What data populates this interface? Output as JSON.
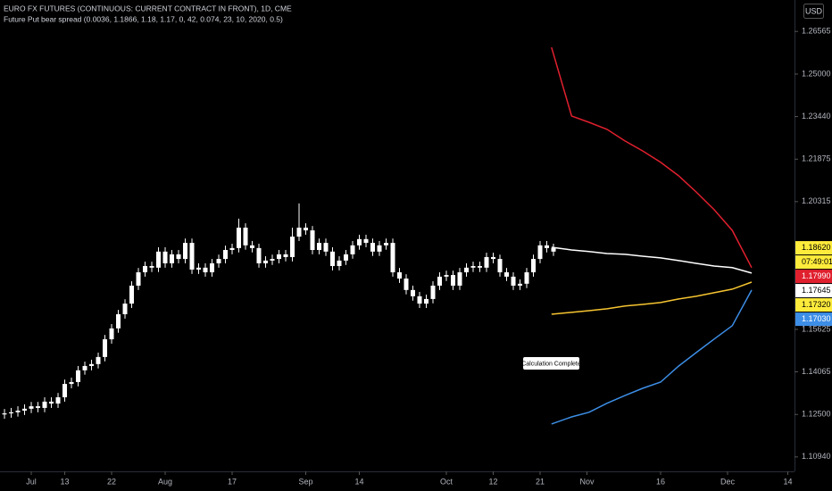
{
  "chart_data": {
    "type": "candlestick",
    "title": "EURO FX FUTURES (CONTINUOUS: CURRENT CONTRACT IN FRONT), 1D, CME",
    "subtitle": "Future Put bear spread (0.0036, 1.1866, 1.18, 1.17, 0, 42, 0.074, 23, 10, 2020, 0.5)",
    "currency": "USD",
    "annotation": "Calculation Complete",
    "color": "#ffffff",
    "x": [
      0,
      1,
      2,
      3,
      4,
      5,
      6,
      7,
      8,
      9,
      10,
      11,
      12,
      13,
      14,
      15,
      16,
      17,
      18,
      19,
      20,
      21,
      22,
      23,
      24,
      25,
      26,
      27,
      28,
      29,
      30,
      31,
      32,
      33,
      34,
      35,
      36,
      37,
      38,
      39,
      40,
      41,
      42,
      43,
      44,
      45,
      46,
      47,
      48,
      49,
      50,
      51,
      52,
      53,
      54,
      55,
      56,
      57,
      58,
      59,
      60,
      61,
      62,
      63,
      64,
      65,
      66,
      67,
      68,
      69,
      70,
      71,
      72,
      73,
      74,
      75,
      76,
      77,
      78,
      79,
      80,
      81,
      82
    ],
    "open": [
      1.125,
      1.1254,
      1.1258,
      1.1264,
      1.1271,
      1.128,
      1.1274,
      1.1297,
      1.129,
      1.1313,
      1.1362,
      1.1369,
      1.1412,
      1.1428,
      1.1435,
      1.1461,
      1.1526,
      1.1566,
      1.1618,
      1.1657,
      1.1723,
      1.1772,
      1.1795,
      1.1789,
      1.1848,
      1.1805,
      1.1838,
      1.1821,
      1.188,
      1.1782,
      1.1789,
      1.1772,
      1.1805,
      1.1821,
      1.1854,
      1.1861,
      1.1936,
      1.1871,
      1.1861,
      1.1805,
      1.1815,
      1.1821,
      1.1838,
      1.1828,
      1.1903,
      1.1936,
      1.1926,
      1.1854,
      1.188,
      1.1848,
      1.1795,
      1.1815,
      1.1838,
      1.1871,
      1.1894,
      1.188,
      1.1848,
      1.1871,
      1.188,
      1.1772,
      1.1749,
      1.1707,
      1.1684,
      1.1657,
      1.1674,
      1.1723,
      1.1756,
      1.1762,
      1.1723,
      1.1772,
      1.1789,
      1.1795,
      1.1789,
      1.1828,
      1.1821,
      1.1772,
      1.1756,
      1.1723,
      1.173,
      1.1772,
      1.1821,
      1.1871,
      1.1861
    ],
    "high": [
      1.127,
      1.1274,
      1.128,
      1.1287,
      1.1296,
      1.1296,
      1.1313,
      1.1313,
      1.1329,
      1.1378,
      1.1385,
      1.1428,
      1.1444,
      1.1451,
      1.1477,
      1.1542,
      1.1582,
      1.1634,
      1.1673,
      1.1739,
      1.1788,
      1.1811,
      1.1811,
      1.1864,
      1.1864,
      1.1854,
      1.1854,
      1.1896,
      1.1896,
      1.1805,
      1.1805,
      1.1821,
      1.1837,
      1.187,
      1.1877,
      1.1969,
      1.1952,
      1.1887,
      1.1877,
      1.1831,
      1.1837,
      1.1854,
      1.1854,
      1.1936,
      1.2025,
      1.1952,
      1.1942,
      1.1896,
      1.1896,
      1.1864,
      1.1831,
      1.1854,
      1.1887,
      1.191,
      1.191,
      1.1896,
      1.1887,
      1.1896,
      1.1896,
      1.1788,
      1.1765,
      1.1723,
      1.17,
      1.169,
      1.1739,
      1.1772,
      1.1778,
      1.1778,
      1.1788,
      1.1805,
      1.1811,
      1.1811,
      1.1844,
      1.1844,
      1.1837,
      1.1788,
      1.1772,
      1.1746,
      1.1788,
      1.1837,
      1.1887,
      1.1887,
      1.1877
    ],
    "low": [
      1.1234,
      1.1238,
      1.1242,
      1.1248,
      1.1255,
      1.1258,
      1.1258,
      1.1274,
      1.1274,
      1.1297,
      1.1346,
      1.1353,
      1.1396,
      1.1412,
      1.1419,
      1.1445,
      1.151,
      1.155,
      1.1602,
      1.1641,
      1.1707,
      1.1756,
      1.1773,
      1.1773,
      1.1789,
      1.1789,
      1.1805,
      1.1805,
      1.1766,
      1.1766,
      1.1756,
      1.1756,
      1.1789,
      1.1805,
      1.1838,
      1.1845,
      1.1855,
      1.1845,
      1.1789,
      1.1789,
      1.1799,
      1.1805,
      1.1812,
      1.1812,
      1.1887,
      1.191,
      1.1838,
      1.1838,
      1.1832,
      1.1779,
      1.1779,
      1.1799,
      1.1822,
      1.1855,
      1.1864,
      1.1832,
      1.1832,
      1.1855,
      1.1756,
      1.1733,
      1.1691,
      1.1668,
      1.1641,
      1.1641,
      1.1658,
      1.1707,
      1.174,
      1.1707,
      1.1707,
      1.1756,
      1.1773,
      1.1773,
      1.1773,
      1.1805,
      1.1756,
      1.174,
      1.1707,
      1.1707,
      1.1714,
      1.1756,
      1.1805,
      1.1845,
      1.1832
    ],
    "close": [
      1.1254,
      1.1258,
      1.1264,
      1.1271,
      1.128,
      1.1274,
      1.1297,
      1.129,
      1.1313,
      1.1362,
      1.1369,
      1.1412,
      1.1428,
      1.1435,
      1.1461,
      1.1526,
      1.1566,
      1.1618,
      1.1657,
      1.1723,
      1.1772,
      1.1795,
      1.1789,
      1.1848,
      1.1805,
      1.1838,
      1.1821,
      1.188,
      1.1782,
      1.1789,
      1.1772,
      1.1805,
      1.1821,
      1.1854,
      1.1861,
      1.1936,
      1.1871,
      1.1861,
      1.1805,
      1.1815,
      1.1821,
      1.1838,
      1.1828,
      1.1903,
      1.1936,
      1.1926,
      1.1854,
      1.188,
      1.1848,
      1.1795,
      1.1815,
      1.1838,
      1.1871,
      1.1894,
      1.188,
      1.1848,
      1.1871,
      1.188,
      1.1772,
      1.1749,
      1.1707,
      1.1684,
      1.1657,
      1.1674,
      1.1723,
      1.1756,
      1.1762,
      1.1723,
      1.1772,
      1.1789,
      1.1795,
      1.1789,
      1.1828,
      1.1821,
      1.1772,
      1.1756,
      1.1723,
      1.173,
      1.1772,
      1.1821,
      1.1871,
      1.1861,
      1.1848
    ],
    "projection_x": [
      81.7,
      84.7,
      87.3,
      90,
      92.7,
      95.3,
      98,
      100.7,
      103.3,
      106,
      108.7,
      111.6
    ],
    "projections": [
      {
        "color": "#e0202e",
        "values": [
          1.2598,
          1.2346,
          1.2323,
          1.2297,
          1.2254,
          1.2218,
          1.2176,
          1.2126,
          1.2067,
          1.2002,
          1.1926,
          1.1789
        ]
      },
      {
        "color": "#ffffff",
        "values": [
          1.1864,
          1.1854,
          1.1848,
          1.1841,
          1.1838,
          1.1831,
          1.1825,
          1.1815,
          1.1805,
          1.1795,
          1.1789,
          1.1769
        ]
      },
      {
        "color": "#f7c530",
        "values": [
          1.1618,
          1.1625,
          1.1631,
          1.1638,
          1.1648,
          1.1654,
          1.1661,
          1.1674,
          1.1684,
          1.1697,
          1.171,
          1.1736
        ]
      },
      {
        "color": "#3d8ee6",
        "values": [
          1.1215,
          1.1241,
          1.1258,
          1.1291,
          1.132,
          1.1346,
          1.1369,
          1.1428,
          1.1477,
          1.1527,
          1.1576,
          1.1707
        ]
      }
    ],
    "price_labels": [
      {
        "value": 1.1862,
        "label": "1.18620",
        "color": "#ffeb3b",
        "text_color": "#000000"
      },
      {
        "value": 1.1799,
        "label": "1.17990",
        "color": "#e0202e",
        "text_color": "#ffffff"
      },
      {
        "value": 1.17645,
        "label": "1.17645",
        "color": "#ffffff",
        "text_color": "#000000"
      },
      {
        "value": 1.1732,
        "label": "1.17320",
        "color": "#ffeb3b",
        "text_color": "#000000"
      },
      {
        "value": 1.1703,
        "label": "1.17030",
        "color": "#3d8ee6",
        "text_color": "#ffffff"
      }
    ],
    "countdown": "07:49:01",
    "xlim": [
      -0.67,
      118
    ],
    "xticks": [
      {
        "value": 4,
        "label": "Jul"
      },
      {
        "value": 9,
        "label": "13"
      },
      {
        "value": 16,
        "label": "22"
      },
      {
        "value": 24,
        "label": "Aug"
      },
      {
        "value": 34,
        "label": "17"
      },
      {
        "value": 45,
        "label": "Sep"
      },
      {
        "value": 53,
        "label": "14"
      },
      {
        "value": 66,
        "label": "Oct"
      },
      {
        "value": 73,
        "label": "12"
      },
      {
        "value": 80,
        "label": "21"
      },
      {
        "value": 87,
        "label": "Nov"
      },
      {
        "value": 98,
        "label": "16"
      },
      {
        "value": 108,
        "label": "Dec"
      },
      {
        "value": 117,
        "label": "14"
      }
    ],
    "ylim": [
      1.1041,
      1.2772
    ],
    "yticks": [
      1.26565,
      {
        "value": 1.25,
        "label": "1.25000"
      },
      {
        "value": 1.2344,
        "label": "1.23440"
      },
      1.21875,
      1.20315,
      1.15625,
      1.14065,
      {
        "value": 1.125,
        "label": "1.12500"
      },
      {
        "value": 1.1094,
        "label": "1.10940"
      }
    ]
  }
}
